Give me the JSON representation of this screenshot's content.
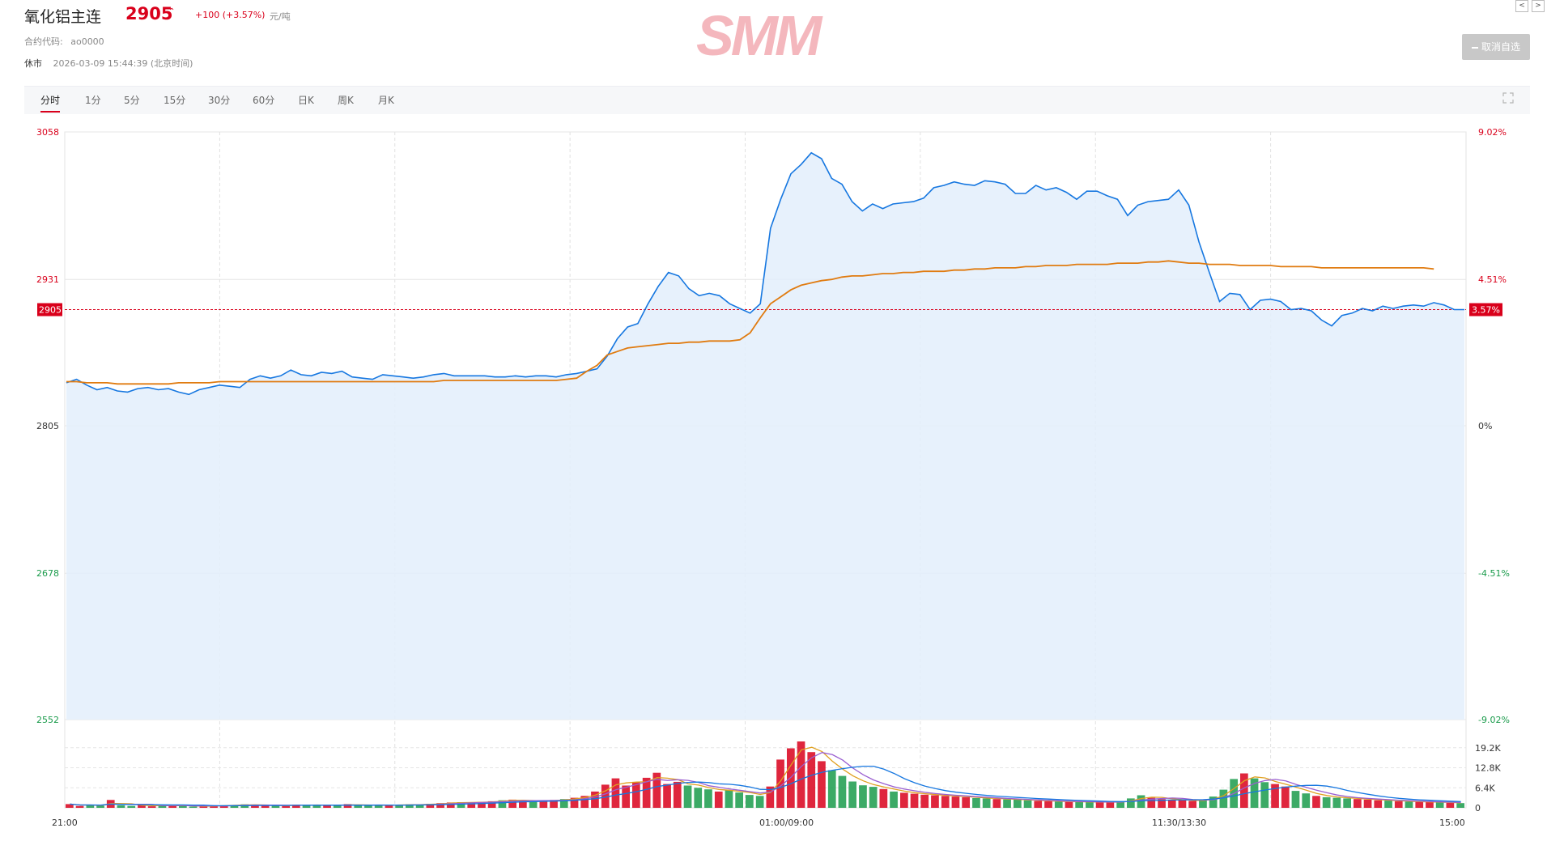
{
  "header": {
    "title": "氧化铝主连",
    "price": "2905",
    "arrow": "⌃",
    "change": "+100 (+3.57%)",
    "unit": "元/吨",
    "contract_label": "合约代码:",
    "contract_code": "ao0000",
    "status": "休市",
    "datetime": "2026-03-09 15:44:39 (北京时间)",
    "watermark": "SMM",
    "unfav_button": "取消自选",
    "prev_arrow": "<",
    "next_arrow": ">"
  },
  "tabs": [
    "分时",
    "1分",
    "5分",
    "15分",
    "30分",
    "60分",
    "日K",
    "周K",
    "月K"
  ],
  "active_tab": "分时",
  "colors": {
    "up": "#d9001b",
    "down": "#1a9b4b",
    "price_line": "#1677e0",
    "avg_line": "#e07b10",
    "fill": "#e3eefb",
    "grid": "#e6e6e6"
  },
  "chart_data": {
    "type": "line",
    "title": "",
    "y_left_ticks": [
      {
        "value": 3058,
        "label": "3058",
        "side": "up"
      },
      {
        "value": 2931,
        "label": "2931",
        "side": "up"
      },
      {
        "value": 2805,
        "label": "2805",
        "side": "flat"
      },
      {
        "value": 2678,
        "label": "2678",
        "side": "down"
      },
      {
        "value": 2552,
        "label": "2552",
        "side": "down"
      }
    ],
    "y_right_ticks": [
      {
        "value": 3058,
        "label": "9.02%",
        "side": "up"
      },
      {
        "value": 2931,
        "label": "4.51%",
        "side": "up"
      },
      {
        "value": 2805,
        "label": "0%",
        "side": "flat"
      },
      {
        "value": 2678,
        "label": "-4.51%",
        "side": "down"
      },
      {
        "value": 2552,
        "label": "-9.02%",
        "side": "down"
      }
    ],
    "ylim": [
      2552,
      3058
    ],
    "current_price": 2905,
    "current_price_label": "2905",
    "current_pct_label": "3.57%",
    "x_labels": [
      "21:00",
      "01:00/09:00",
      "11:30/13:30",
      "15:00"
    ],
    "series": [
      {
        "name": "price",
        "values": [
          2842,
          2845,
          2840,
          2836,
          2838,
          2835,
          2834,
          2837,
          2838,
          2836,
          2837,
          2834,
          2832,
          2836,
          2838,
          2840,
          2839,
          2838,
          2845,
          2848,
          2846,
          2848,
          2853,
          2849,
          2848,
          2851,
          2850,
          2852,
          2847,
          2846,
          2845,
          2849,
          2848,
          2847,
          2846,
          2847,
          2849,
          2850,
          2848,
          2848,
          2848,
          2848,
          2847,
          2847,
          2848,
          2847,
          2848,
          2848,
          2847,
          2849,
          2850,
          2852,
          2854,
          2865,
          2880,
          2890,
          2893,
          2910,
          2925,
          2937,
          2934,
          2923,
          2917,
          2919,
          2917,
          2910,
          2906,
          2902,
          2910,
          2975,
          3000,
          3022,
          3030,
          3040,
          3035,
          3018,
          3013,
          2998,
          2990,
          2996,
          2992,
          2996,
          2997,
          2998,
          3001,
          3010,
          3012,
          3015,
          3013,
          3012,
          3016,
          3015,
          3013,
          3005,
          3005,
          3012,
          3008,
          3010,
          3006,
          3000,
          3007,
          3007,
          3003,
          3000,
          2986,
          2995,
          2998,
          2999,
          3000,
          3008,
          2995,
          2963,
          2937,
          2912,
          2919,
          2918,
          2905,
          2913,
          2914,
          2912,
          2905,
          2906,
          2904,
          2896,
          2891,
          2900,
          2902,
          2906,
          2904,
          2908,
          2906,
          2908,
          2909,
          2908,
          2911,
          2909,
          2905,
          2905
        ]
      },
      {
        "name": "avg",
        "values": [
          2843,
          2843,
          2842,
          2842,
          2842,
          2841,
          2841,
          2841,
          2841,
          2841,
          2841,
          2842,
          2842,
          2842,
          2842,
          2843,
          2843,
          2843,
          2843,
          2843,
          2843,
          2843,
          2843,
          2843,
          2843,
          2843,
          2843,
          2843,
          2843,
          2843,
          2843,
          2843,
          2843,
          2843,
          2843,
          2843,
          2843,
          2844,
          2844,
          2844,
          2844,
          2844,
          2844,
          2844,
          2844,
          2844,
          2844,
          2844,
          2844,
          2845,
          2846,
          2852,
          2857,
          2866,
          2869,
          2872,
          2873,
          2874,
          2875,
          2876,
          2876,
          2877,
          2877,
          2878,
          2878,
          2878,
          2879,
          2885,
          2898,
          2910,
          2916,
          2922,
          2926,
          2928,
          2930,
          2931,
          2933,
          2934,
          2934,
          2935,
          2936,
          2936,
          2937,
          2937,
          2938,
          2938,
          2938,
          2939,
          2939,
          2940,
          2940,
          2941,
          2941,
          2941,
          2942,
          2942,
          2943,
          2943,
          2943,
          2944,
          2944,
          2944,
          2944,
          2945,
          2945,
          2945,
          2946,
          2946,
          2947,
          2946,
          2945,
          2945,
          2944,
          2944,
          2944,
          2943,
          2943,
          2943,
          2943,
          2942,
          2942,
          2942,
          2942,
          2941,
          2941,
          2941,
          2941,
          2941,
          2941,
          2941,
          2941,
          2941,
          2941,
          2941,
          2940
        ]
      }
    ],
    "volume": {
      "ticks": [
        "19.2K",
        "12.8K",
        "6.4K",
        "0"
      ],
      "ylim": [
        0,
        25600
      ],
      "values": [
        1200,
        600,
        900,
        700,
        2500,
        800,
        600,
        1000,
        500,
        700,
        900,
        600,
        400,
        500,
        800,
        700,
        900,
        1100,
        900,
        700,
        800,
        600,
        1000,
        900,
        800,
        700,
        900,
        1200,
        800,
        700,
        900,
        800,
        1000,
        1100,
        900,
        1300,
        1500,
        1700,
        1800,
        1600,
        1900,
        2100,
        2400,
        2600,
        2300,
        2100,
        2200,
        2500,
        2800,
        3200,
        3800,
        5200,
        7400,
        9400,
        7100,
        8200,
        9600,
        11200,
        7600,
        8300,
        7100,
        6400,
        5900,
        5200,
        5700,
        4900,
        4100,
        3800,
        6800,
        15400,
        19000,
        21200,
        17800,
        14900,
        12000,
        10200,
        8400,
        7200,
        6700,
        6000,
        5200,
        4800,
        4500,
        4200,
        4000,
        3800,
        3600,
        3400,
        3100,
        3000,
        2800,
        2700,
        2600,
        2400,
        2200,
        2100,
        2000,
        1900,
        1900,
        1900,
        1800,
        1700,
        1900,
        3000,
        4000,
        3200,
        2800,
        2600,
        2400,
        2200,
        2400,
        3600,
        5800,
        9200,
        11000,
        9400,
        8200,
        7600,
        6800,
        5400,
        4600,
        3800,
        3400,
        3200,
        3000,
        2800,
        2600,
        2400,
        2300,
        2100,
        2000,
        1900,
        1800,
        1700,
        1600,
        1500
      ]
    },
    "grid": true
  }
}
